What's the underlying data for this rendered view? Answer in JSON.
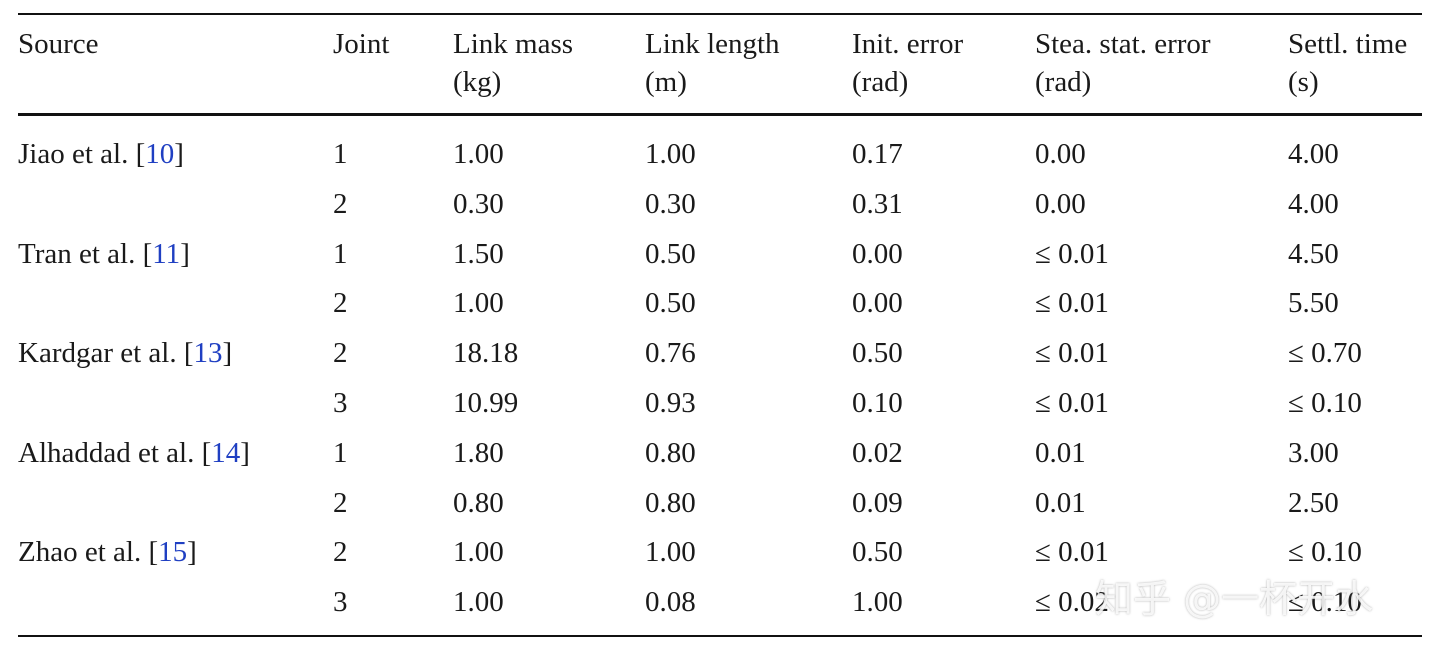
{
  "table": {
    "header": [
      [
        "Source"
      ],
      [
        "Joint"
      ],
      [
        "Link mass",
        "(kg)"
      ],
      [
        "Link length",
        "(m)"
      ],
      [
        "Init. error",
        "(rad)"
      ],
      [
        "Stea. stat. error",
        "(rad)"
      ],
      [
        "Settl. time",
        "(s)"
      ]
    ],
    "groups": [
      {
        "source": [
          "Jiao et al. [",
          "10",
          "]"
        ],
        "rows": [
          [
            "1",
            "1.00",
            "1.00",
            "0.17",
            "0.00",
            "4.00"
          ],
          [
            "2",
            "0.30",
            "0.30",
            "0.31",
            "0.00",
            "4.00"
          ]
        ]
      },
      {
        "source": [
          "Tran et al. [",
          "11",
          "]"
        ],
        "rows": [
          [
            "1",
            "1.50",
            "0.50",
            "0.00",
            "≤ 0.01",
            "4.50"
          ],
          [
            "2",
            "1.00",
            "0.50",
            "0.00",
            "≤ 0.01",
            "5.50"
          ]
        ]
      },
      {
        "source": [
          "Kardgar et al. [",
          "13",
          "]"
        ],
        "rows": [
          [
            "2",
            "18.18",
            "0.76",
            "0.50",
            "≤ 0.01",
            "≤ 0.70"
          ],
          [
            "3",
            "10.99",
            "0.93",
            "0.10",
            "≤ 0.01",
            "≤ 0.10"
          ]
        ]
      },
      {
        "source": [
          "Alhaddad et al. [",
          "14",
          "]"
        ],
        "rows": [
          [
            "1",
            "1.80",
            "0.80",
            "0.02",
            "0.01",
            "3.00"
          ],
          [
            "2",
            "0.80",
            "0.80",
            "0.09",
            "0.01",
            "2.50"
          ]
        ]
      },
      {
        "source": [
          "Zhao et al. [",
          "15",
          "]"
        ],
        "rows": [
          [
            "2",
            "1.00",
            "1.00",
            "0.50",
            "≤ 0.01",
            "≤ 0.10"
          ],
          [
            "3",
            "1.00",
            "0.08",
            "1.00",
            "≤ 0.02",
            "≤ 0.10"
          ]
        ]
      }
    ]
  },
  "watermark": "知乎 @一杯开水"
}
